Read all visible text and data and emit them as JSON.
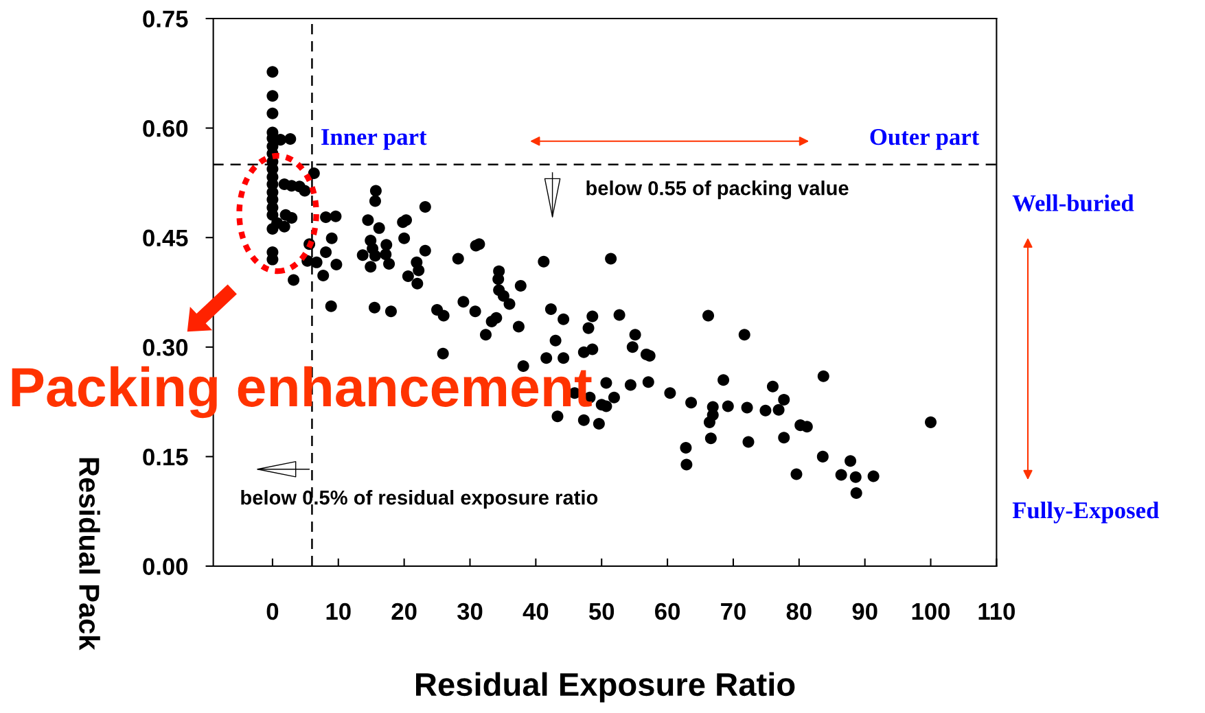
{
  "chart_data": {
    "type": "scatter",
    "xlabel": "Residual Exposure Ratio",
    "ylabel": "Residual Pack",
    "marker": "circle",
    "grid": false,
    "legend": false,
    "xlim": [
      -9,
      110
    ],
    "xticks": [
      0,
      10,
      20,
      30,
      40,
      50,
      60,
      70,
      80,
      90,
      100,
      110
    ],
    "ylim": [
      0,
      0.75
    ],
    "yticks": [
      {
        "value": 0,
        "label": "0.00"
      },
      {
        "value": 0.15,
        "label": "0.15"
      },
      {
        "value": 0.3,
        "label": "0.30"
      },
      {
        "value": 0.45,
        "label": "0.45"
      },
      {
        "value": 0.6,
        "label": "0.60"
      },
      {
        "value": 0.75,
        "label": "0.75"
      }
    ],
    "ref_lines": [
      {
        "axis": "x",
        "value": 6,
        "label": null,
        "color": "#000000",
        "line_style": "dashed"
      },
      {
        "axis": "y",
        "value": 0.55,
        "label": null,
        "color": "#000000",
        "line_style": "dashed"
      }
    ],
    "annotations": [
      "Inner part",
      "Outer part",
      "below 0.55 of packing value",
      "below 0.5% of residual exposure ratio",
      "Well-buried",
      "Fully-Exposed",
      "Packing enhancement"
    ],
    "series": [
      {
        "color": "#000000",
        "x": [
          0,
          0,
          0,
          0,
          0,
          0,
          0,
          0,
          0,
          0,
          0,
          0,
          0,
          0,
          0,
          0,
          0,
          0,
          2.7,
          1.2,
          1.8,
          2.9,
          4.1,
          4.9,
          6.3,
          2,
          2.9,
          1.8,
          0.7,
          3.2,
          5.6,
          5.3,
          6.7,
          8.1,
          9.6,
          9.0,
          8.1,
          9.7,
          7.7,
          8.9,
          15.7,
          15.6,
          14.5,
          16.2,
          14.9,
          15.2,
          13.7,
          15.6,
          14.9,
          17.3,
          17.2,
          17.7,
          15.5,
          18.0,
          19.8,
          20.3,
          20.0,
          23.2,
          23.2,
          21.9,
          22.2,
          20.6,
          22.0,
          25.0,
          26.0,
          25.9,
          28.2,
          30.9,
          31.4,
          29.0,
          30.8,
          34.4,
          34.3,
          34.4,
          35.1,
          36.0,
          37.7,
          37.4,
          34.0,
          33.3,
          32.4,
          41.2,
          38.1,
          42.3,
          44.2,
          43.0,
          41.6,
          44.2,
          43.3,
          48.6,
          48.0,
          48.6,
          47.3,
          51.4,
          52.7,
          55.1,
          54.7,
          56.8,
          57.1,
          54.4,
          50.7,
          51.9,
          50.0,
          50.7,
          48.2,
          45.9,
          47.3,
          49.6,
          57.3,
          66.2,
          71.7,
          60.4,
          63.6,
          66.9,
          66.9,
          66.4,
          69.2,
          72.1,
          68.5,
          74.9,
          76.9,
          77.7,
          76.0,
          83.7,
          80.2,
          81.2,
          77.7,
          72.3,
          66.6,
          62.8,
          62.9,
          79.6,
          83.6,
          87.8,
          86.4,
          88.6,
          91.3,
          88.7,
          100.0
        ],
        "values": [
          0.677,
          0.644,
          0.62,
          0.594,
          0.586,
          0.575,
          0.565,
          0.554,
          0.544,
          0.533,
          0.523,
          0.512,
          0.502,
          0.491,
          0.481,
          0.462,
          0.43,
          0.42,
          0.585,
          0.584,
          0.523,
          0.521,
          0.52,
          0.514,
          0.538,
          0.481,
          0.477,
          0.465,
          0.47,
          0.392,
          0.441,
          0.418,
          0.416,
          0.478,
          0.479,
          0.449,
          0.43,
          0.413,
          0.398,
          0.356,
          0.514,
          0.5,
          0.474,
          0.463,
          0.446,
          0.435,
          0.426,
          0.425,
          0.41,
          0.44,
          0.427,
          0.414,
          0.354,
          0.349,
          0.471,
          0.474,
          0.449,
          0.492,
          0.432,
          0.416,
          0.405,
          0.397,
          0.387,
          0.351,
          0.343,
          0.291,
          0.421,
          0.439,
          0.441,
          0.362,
          0.349,
          0.404,
          0.393,
          0.378,
          0.37,
          0.359,
          0.384,
          0.328,
          0.34,
          0.335,
          0.317,
          0.417,
          0.274,
          0.352,
          0.338,
          0.309,
          0.285,
          0.285,
          0.205,
          0.342,
          0.326,
          0.297,
          0.293,
          0.421,
          0.344,
          0.317,
          0.3,
          0.29,
          0.252,
          0.248,
          0.251,
          0.231,
          0.221,
          0.219,
          0.231,
          0.237,
          0.2,
          0.195,
          0.288,
          0.343,
          0.317,
          0.237,
          0.224,
          0.218,
          0.207,
          0.197,
          0.219,
          0.217,
          0.255,
          0.213,
          0.214,
          0.228,
          0.246,
          0.26,
          0.193,
          0.191,
          0.176,
          0.17,
          0.175,
          0.162,
          0.139,
          0.126,
          0.15,
          0.144,
          0.125,
          0.122,
          0.123,
          0.1,
          0.197
        ]
      }
    ]
  }
}
